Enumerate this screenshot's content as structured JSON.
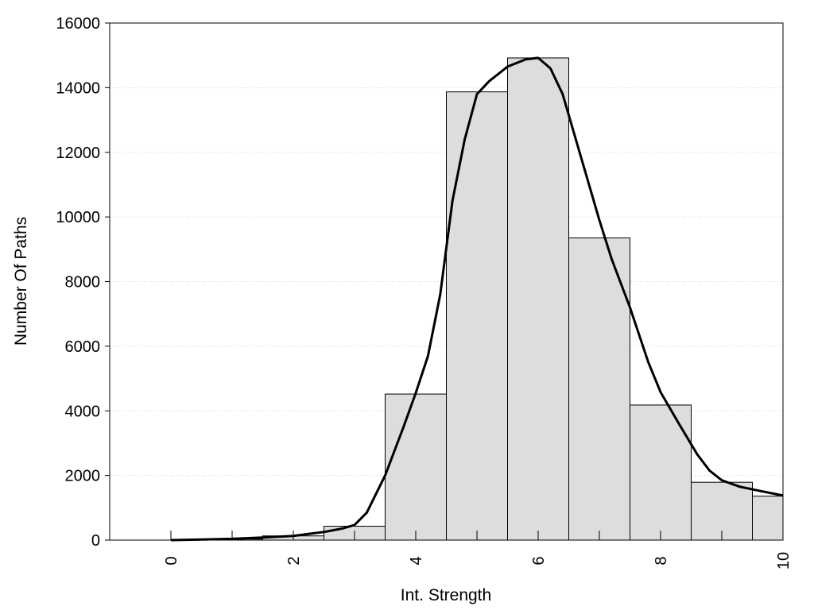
{
  "chart_data": {
    "type": "bar",
    "title": "",
    "xlabel": "Int. Strength",
    "ylabel": "Number Of Paths",
    "xlim": [
      -1,
      10
    ],
    "ylim": [
      0,
      16000
    ],
    "x_ticks": [
      0,
      2,
      4,
      6,
      8,
      10
    ],
    "y_ticks": [
      0,
      2000,
      4000,
      6000,
      8000,
      10000,
      12000,
      14000,
      16000
    ],
    "grid": "horizontal dotted",
    "legend": "none",
    "colors": {
      "bar_fill": "#dddddd",
      "bar_stroke": "#000000",
      "curve": "#000000",
      "grid": "#cccccc"
    },
    "bins": [
      {
        "x": 0,
        "value": 0
      },
      {
        "x": 1,
        "value": 30
      },
      {
        "x": 2,
        "value": 130
      },
      {
        "x": 3,
        "value": 430
      },
      {
        "x": 4,
        "value": 4520
      },
      {
        "x": 5,
        "value": 13870
      },
      {
        "x": 6,
        "value": 14920
      },
      {
        "x": 7,
        "value": 9350
      },
      {
        "x": 8,
        "value": 4180
      },
      {
        "x": 9,
        "value": 1790
      },
      {
        "x": 10,
        "value": 1360
      }
    ],
    "bin_width": 1,
    "curve": {
      "type": "line",
      "x": [
        0,
        0.5,
        1,
        1.5,
        2,
        2.5,
        2.8,
        3,
        3.2,
        3.5,
        3.8,
        4,
        4.2,
        4.4,
        4.6,
        4.8,
        5,
        5.2,
        5.5,
        5.8,
        6,
        6.2,
        6.4,
        6.6,
        6.8,
        7,
        7.2,
        7.5,
        7.8,
        8,
        8.3,
        8.6,
        8.8,
        9,
        9.3,
        9.6,
        10
      ],
      "y": [
        0,
        20,
        40,
        80,
        130,
        250,
        360,
        470,
        850,
        2000,
        3500,
        4550,
        5700,
        7600,
        10500,
        12400,
        13800,
        14200,
        14650,
        14880,
        14920,
        14600,
        13800,
        12500,
        11200,
        9900,
        8700,
        7200,
        5500,
        4580,
        3600,
        2650,
        2150,
        1850,
        1650,
        1530,
        1380
      ]
    }
  }
}
